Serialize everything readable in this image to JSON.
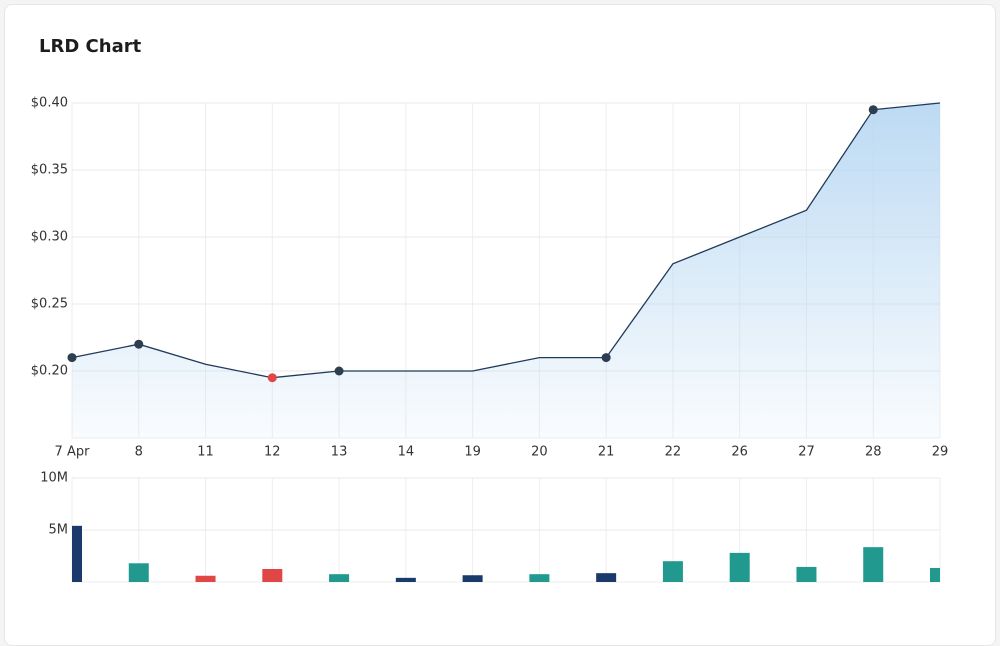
{
  "chart_data": [
    {
      "type": "line",
      "title": "LRD Chart",
      "categories": [
        "7 Apr",
        "8",
        "11",
        "12",
        "13",
        "14",
        "19",
        "20",
        "21",
        "22",
        "26",
        "27",
        "28",
        "29"
      ],
      "values": [
        0.21,
        0.22,
        0.205,
        0.195,
        0.2,
        0.2,
        0.2,
        0.21,
        0.21,
        0.28,
        0.3,
        0.32,
        0.395,
        0.4
      ],
      "marker_colors": [
        "#2d3e50",
        "#2d3e50",
        null,
        "#e04646",
        "#2d3e50",
        null,
        null,
        null,
        "#2d3e50",
        null,
        null,
        null,
        "#2d3e50",
        null
      ],
      "color": "#1f3a5a",
      "fill_color": "#b9d8f2",
      "ylim": [
        0.15,
        0.4
      ],
      "yticks": [
        {
          "value": 0.2,
          "label": "$0.20"
        },
        {
          "value": 0.25,
          "label": "$0.25"
        },
        {
          "value": 0.3,
          "label": "$0.30"
        },
        {
          "value": 0.35,
          "label": "$0.35"
        },
        {
          "value": 0.4,
          "label": "$0.40"
        }
      ],
      "grid": true
    },
    {
      "type": "bar",
      "values": [
        5400000,
        1800000,
        600000,
        1250000,
        750000,
        400000,
        650000,
        750000,
        850000,
        2000000,
        2800000,
        1450000,
        3350000,
        1350000
      ],
      "colors": [
        "#1a3a6b",
        "#21998e",
        "#e04646",
        "#e04646",
        "#21998e",
        "#1a3a6b",
        "#1a3a6b",
        "#21998e",
        "#1a3a6b",
        "#21998e",
        "#21998e",
        "#21998e",
        "#21998e",
        "#21998e"
      ],
      "ylim": [
        0,
        10000000
      ],
      "yticks": [
        {
          "value": 5000000,
          "label": "5M"
        },
        {
          "value": 10000000,
          "label": "10M"
        }
      ],
      "grid": true
    }
  ]
}
